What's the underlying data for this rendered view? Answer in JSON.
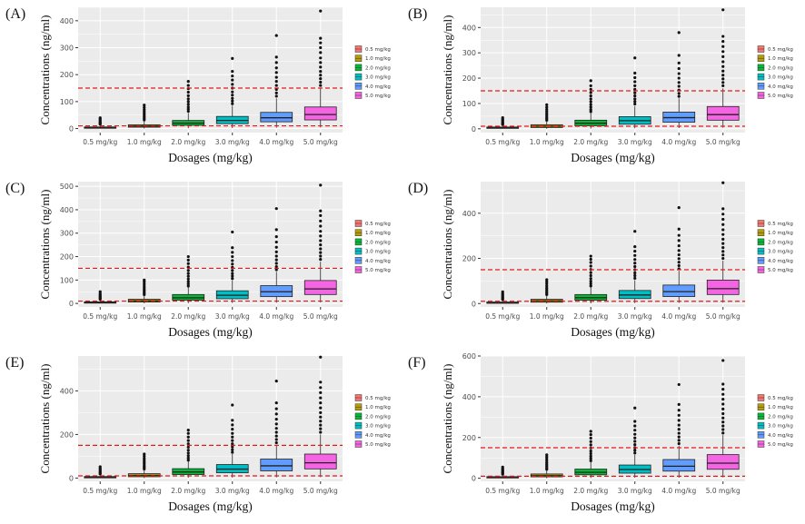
{
  "figure": {
    "xlabel": "Dosages (mg/kg)",
    "ylabel": "Concentrations (ng/ml)",
    "categories": [
      "0.5 mg/kg",
      "1.0 mg/kg",
      "2.0 mg/kg",
      "3.0 mg/kg",
      "4.0 mg/kg",
      "5.0 mg/kg"
    ],
    "legend": [
      "0.5 mg/kg",
      "1.0 mg/kg",
      "2.0 mg/kg",
      "3.0 mg/kg",
      "4.0 mg/kg",
      "5.0 mg/kg"
    ],
    "colors": [
      "#F8766D",
      "#B79F00",
      "#00BA38",
      "#00BFC4",
      "#619CFF",
      "#F564E3"
    ],
    "reference_lines": [
      10,
      150
    ],
    "reference_color": "#E31A1C",
    "panel_bg": "#EBEBEB"
  },
  "chart_data": [
    {
      "type": "box",
      "label": "(A)",
      "ylim": [
        -15,
        450
      ],
      "yticks": [
        0,
        100,
        200,
        300,
        400
      ],
      "series": [
        {
          "name": "0.5 mg/kg",
          "q1": 2,
          "median": 4,
          "q3": 6,
          "whisker_low": 0,
          "whisker_high": 13,
          "outliers": [
            16,
            19,
            22,
            26,
            30,
            35,
            40
          ]
        },
        {
          "name": "1.0 mg/kg",
          "q1": 5,
          "median": 9,
          "q3": 14,
          "whisker_low": 0,
          "whisker_high": 28,
          "outliers": [
            32,
            38,
            44,
            50,
            56,
            63,
            70,
            78,
            87
          ]
        },
        {
          "name": "2.0 mg/kg",
          "q1": 12,
          "median": 20,
          "q3": 30,
          "whisker_low": 1,
          "whisker_high": 58,
          "outliers": [
            64,
            72,
            80,
            90,
            100,
            110,
            122,
            135,
            148,
            160,
            175
          ]
        },
        {
          "name": "3.0 mg/kg",
          "q1": 18,
          "median": 30,
          "q3": 45,
          "whisker_low": 2,
          "whisker_high": 85,
          "outliers": [
            92,
            102,
            112,
            124,
            136,
            150,
            164,
            180,
            195,
            212,
            260
          ]
        },
        {
          "name": "4.0 mg/kg",
          "q1": 25,
          "median": 40,
          "q3": 60,
          "whisker_low": 3,
          "whisker_high": 112,
          "outliers": [
            120,
            132,
            145,
            160,
            175,
            190,
            208,
            225,
            245,
            265,
            345
          ]
        },
        {
          "name": "5.0 mg/kg",
          "q1": 32,
          "median": 52,
          "q3": 80,
          "whisker_low": 4,
          "whisker_high": 150,
          "outliers": [
            160,
            172,
            185,
            198,
            212,
            228,
            245,
            262,
            282,
            300,
            318,
            335,
            436
          ]
        }
      ]
    },
    {
      "type": "box",
      "label": "(B)",
      "ylim": [
        -15,
        480
      ],
      "yticks": [
        0,
        100,
        200,
        300,
        400
      ],
      "series": [
        {
          "name": "0.5 mg/kg",
          "q1": 2,
          "median": 4,
          "q3": 7,
          "whisker_low": 0,
          "whisker_high": 14,
          "outliers": [
            17,
            20,
            24,
            28,
            33,
            38,
            44
          ]
        },
        {
          "name": "1.0 mg/kg",
          "q1": 5,
          "median": 10,
          "q3": 16,
          "whisker_low": 0,
          "whisker_high": 30,
          "outliers": [
            34,
            40,
            46,
            53,
            60,
            68,
            76,
            85,
            95
          ]
        },
        {
          "name": "2.0 mg/kg",
          "q1": 12,
          "median": 22,
          "q3": 34,
          "whisker_low": 1,
          "whisker_high": 62,
          "outliers": [
            68,
            76,
            86,
            96,
            107,
            118,
            130,
            143,
            156,
            170,
            190
          ]
        },
        {
          "name": "3.0 mg/kg",
          "q1": 18,
          "median": 32,
          "q3": 48,
          "whisker_low": 2,
          "whisker_high": 90,
          "outliers": [
            98,
            108,
            118,
            130,
            142,
            156,
            170,
            186,
            202,
            220,
            280
          ]
        },
        {
          "name": "4.0 mg/kg",
          "q1": 26,
          "median": 44,
          "q3": 66,
          "whisker_low": 3,
          "whisker_high": 120,
          "outliers": [
            128,
            140,
            153,
            168,
            183,
            200,
            218,
            238,
            260,
            290,
            380
          ]
        },
        {
          "name": "5.0 mg/kg",
          "q1": 34,
          "median": 56,
          "q3": 88,
          "whisker_low": 4,
          "whisker_high": 160,
          "outliers": [
            170,
            183,
            197,
            212,
            228,
            246,
            265,
            285,
            305,
            325,
            345,
            365,
            470
          ]
        }
      ]
    },
    {
      "type": "box",
      "label": "(C)",
      "ylim": [
        -15,
        520
      ],
      "yticks": [
        0,
        100,
        200,
        300,
        400,
        500
      ],
      "series": [
        {
          "name": "0.5 mg/kg",
          "q1": 2,
          "median": 4,
          "q3": 7,
          "whisker_low": 0,
          "whisker_high": 15,
          "outliers": [
            18,
            22,
            26,
            31,
            36,
            42,
            50
          ]
        },
        {
          "name": "1.0 mg/kg",
          "q1": 6,
          "median": 11,
          "q3": 18,
          "whisker_low": 0,
          "whisker_high": 34,
          "outliers": [
            38,
            44,
            51,
            58,
            66,
            74,
            83,
            92,
            100
          ]
        },
        {
          "name": "2.0 mg/kg",
          "q1": 14,
          "median": 24,
          "q3": 38,
          "whisker_low": 1,
          "whisker_high": 68,
          "outliers": [
            74,
            83,
            93,
            104,
            116,
            128,
            141,
            155,
            170,
            185,
            200
          ]
        },
        {
          "name": "3.0 mg/kg",
          "q1": 20,
          "median": 35,
          "q3": 54,
          "whisker_low": 2,
          "whisker_high": 98,
          "outliers": [
            106,
            117,
            128,
            141,
            154,
            168,
            183,
            200,
            218,
            238,
            305
          ]
        },
        {
          "name": "4.0 mg/kg",
          "q1": 29,
          "median": 50,
          "q3": 76,
          "whisker_low": 3,
          "whisker_high": 135,
          "outliers": [
            144,
            157,
            171,
            186,
            202,
            220,
            240,
            262,
            285,
            315,
            405
          ]
        },
        {
          "name": "5.0 mg/kg",
          "q1": 38,
          "median": 62,
          "q3": 98,
          "whisker_low": 4,
          "whisker_high": 178,
          "outliers": [
            188,
            202,
            217,
            233,
            250,
            268,
            288,
            308,
            330,
            352,
            375,
            395,
            505
          ]
        }
      ]
    },
    {
      "type": "box",
      "label": "(D)",
      "ylim": [
        -15,
        540
      ],
      "yticks": [
        0,
        200,
        400
      ],
      "series": [
        {
          "name": "0.5 mg/kg",
          "q1": 2,
          "median": 4,
          "q3": 7,
          "whisker_low": 0,
          "whisker_high": 15,
          "outliers": [
            18,
            22,
            27,
            32,
            38,
            44,
            52
          ]
        },
        {
          "name": "1.0 mg/kg",
          "q1": 6,
          "median": 12,
          "q3": 19,
          "whisker_low": 0,
          "whisker_high": 36,
          "outliers": [
            40,
            46,
            53,
            61,
            69,
            78,
            88,
            97,
            106
          ]
        },
        {
          "name": "2.0 mg/kg",
          "q1": 15,
          "median": 26,
          "q3": 40,
          "whisker_low": 1,
          "whisker_high": 72,
          "outliers": [
            78,
            88,
            99,
            111,
            124,
            137,
            151,
            166,
            182,
            196,
            210
          ]
        },
        {
          "name": "3.0 mg/kg",
          "q1": 22,
          "median": 38,
          "q3": 58,
          "whisker_low": 2,
          "whisker_high": 104,
          "outliers": [
            112,
            124,
            136,
            150,
            164,
            179,
            195,
            213,
            232,
            252,
            320
          ]
        },
        {
          "name": "4.0 mg/kg",
          "q1": 31,
          "median": 53,
          "q3": 82,
          "whisker_low": 3,
          "whisker_high": 145,
          "outliers": [
            154,
            168,
            183,
            199,
            216,
            235,
            256,
            279,
            302,
            330,
            425
          ]
        },
        {
          "name": "5.0 mg/kg",
          "q1": 40,
          "median": 66,
          "q3": 104,
          "whisker_low": 4,
          "whisker_high": 190,
          "outliers": [
            200,
            215,
            231,
            248,
            266,
            285,
            306,
            327,
            350,
            373,
            396,
            420,
            535
          ]
        }
      ]
    },
    {
      "type": "box",
      "label": "(E)",
      "ylim": [
        -15,
        560
      ],
      "yticks": [
        0,
        200,
        400
      ],
      "series": [
        {
          "name": "0.5 mg/kg",
          "q1": 2,
          "median": 4,
          "q3": 7,
          "whisker_low": 0,
          "whisker_high": 16,
          "outliers": [
            19,
            23,
            28,
            33,
            39,
            45,
            52
          ]
        },
        {
          "name": "1.0 mg/kg",
          "q1": 6,
          "median": 12,
          "q3": 20,
          "whisker_low": 0,
          "whisker_high": 38,
          "outliers": [
            42,
            49,
            56,
            64,
            72,
            81,
            90,
            100,
            110
          ]
        },
        {
          "name": "2.0 mg/kg",
          "q1": 16,
          "median": 28,
          "q3": 43,
          "whisker_low": 1,
          "whisker_high": 76,
          "outliers": [
            82,
            92,
            103,
            115,
            128,
            142,
            157,
            172,
            188,
            205,
            220
          ]
        },
        {
          "name": "3.0 mg/kg",
          "q1": 24,
          "median": 41,
          "q3": 62,
          "whisker_low": 2,
          "whisker_high": 110,
          "outliers": [
            118,
            130,
            143,
            157,
            172,
            188,
            205,
            224,
            244,
            265,
            335
          ]
        },
        {
          "name": "4.0 mg/kg",
          "q1": 33,
          "median": 56,
          "q3": 87,
          "whisker_low": 3,
          "whisker_high": 152,
          "outliers": [
            162,
            177,
            193,
            210,
            228,
            248,
            270,
            294,
            318,
            345,
            445
          ]
        },
        {
          "name": "5.0 mg/kg",
          "q1": 42,
          "median": 70,
          "q3": 110,
          "whisker_low": 4,
          "whisker_high": 200,
          "outliers": [
            210,
            226,
            243,
            261,
            280,
            300,
            322,
            345,
            368,
            392,
            415,
            440,
            555
          ]
        }
      ]
    },
    {
      "type": "box",
      "label": "(F)",
      "ylim": [
        -15,
        600
      ],
      "yticks": [
        0,
        200,
        400,
        600
      ],
      "series": [
        {
          "name": "0.5 mg/kg",
          "q1": 2,
          "median": 4,
          "q3": 8,
          "whisker_low": 0,
          "whisker_high": 17,
          "outliers": [
            20,
            25,
            30,
            35,
            41,
            47,
            55
          ]
        },
        {
          "name": "1.0 mg/kg",
          "q1": 7,
          "median": 13,
          "q3": 21,
          "whisker_low": 0,
          "whisker_high": 40,
          "outliers": [
            44,
            51,
            59,
            67,
            76,
            85,
            95,
            105,
            115
          ]
        },
        {
          "name": "2.0 mg/kg",
          "q1": 17,
          "median": 29,
          "q3": 45,
          "whisker_low": 1,
          "whisker_high": 80,
          "outliers": [
            86,
            97,
            108,
            121,
            134,
            149,
            164,
            180,
            197,
            214,
            230
          ]
        },
        {
          "name": "3.0 mg/kg",
          "q1": 25,
          "median": 43,
          "q3": 65,
          "whisker_low": 2,
          "whisker_high": 116,
          "outliers": [
            124,
            137,
            150,
            165,
            181,
            198,
            216,
            236,
            257,
            279,
            345
          ]
        },
        {
          "name": "4.0 mg/kg",
          "q1": 35,
          "median": 59,
          "q3": 92,
          "whisker_low": 3,
          "whisker_high": 160,
          "outliers": [
            170,
            186,
            203,
            221,
            240,
            261,
            284,
            309,
            334,
            362,
            460
          ]
        },
        {
          "name": "5.0 mg/kg",
          "q1": 44,
          "median": 74,
          "q3": 116,
          "whisker_low": 4,
          "whisker_high": 212,
          "outliers": [
            222,
            239,
            257,
            276,
            296,
            317,
            340,
            364,
            388,
            412,
            437,
            462,
            578
          ]
        }
      ]
    }
  ]
}
